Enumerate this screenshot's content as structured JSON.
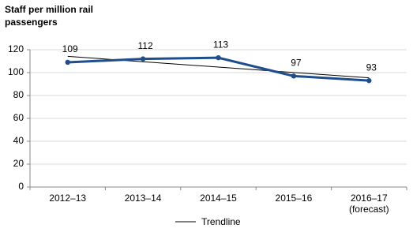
{
  "chart_data": {
    "type": "line",
    "y_axis_label": "Staff per million rail passengers",
    "categories": [
      "2012–13",
      "2013–14",
      "2014–15",
      "2015–16",
      "2016–17\n(forecast)"
    ],
    "series": [
      {
        "name": "Staff per million rail passengers",
        "color": "#1f4e8c",
        "values": [
          109,
          112,
          113,
          97,
          93
        ],
        "data_labels": true,
        "markers": true
      },
      {
        "name": "Trendline",
        "color": "#000000",
        "values": [
          114.2,
          109.5,
          104.8,
          100.1,
          95.4
        ]
      }
    ],
    "ylim": [
      0,
      120
    ],
    "yticks": [
      0,
      20,
      40,
      60,
      80,
      100,
      120
    ],
    "grid": true,
    "legend": "bottom"
  }
}
